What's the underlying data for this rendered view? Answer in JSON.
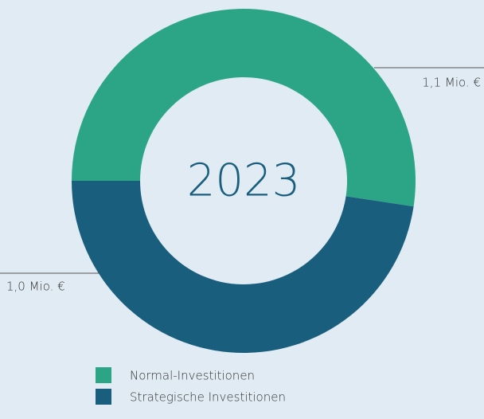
{
  "chart_data": {
    "type": "donut",
    "center_label": "2023",
    "categories": [
      "Normal-Investitionen",
      "Strategische Investitionen"
    ],
    "values": [
      1.1,
      1.0
    ],
    "value_labels": [
      "1,1 Mio. €",
      "1,0 Mio. €"
    ],
    "colors": [
      "#2ba586",
      "#1a5e7e"
    ],
    "legend": "bottom"
  }
}
